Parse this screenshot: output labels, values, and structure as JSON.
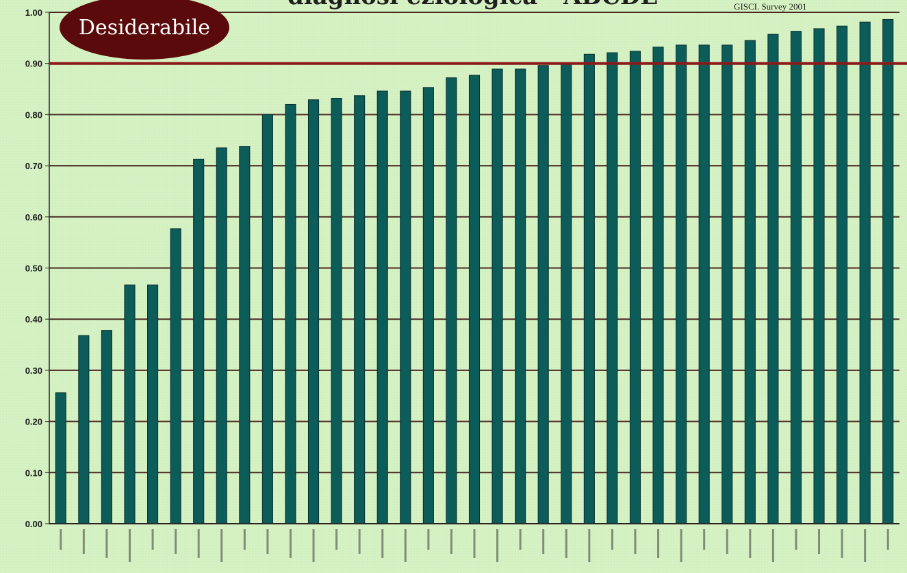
{
  "chart_data": {
    "type": "bar",
    "title_partial": "diagnosi eziologica - ABCDE",
    "credit": "GISCI. Survey 2001",
    "badge": "Desiderabile",
    "ylim": [
      0,
      1.0
    ],
    "yticks": [
      "0.00",
      "0.10",
      "0.20",
      "0.30",
      "0.40",
      "0.50",
      "0.60",
      "0.70",
      "0.80",
      "0.90",
      "1.00"
    ],
    "threshold": 0.9,
    "categories": [
      "",
      "",
      "",
      "",
      "",
      "",
      "",
      "",
      "",
      "",
      "",
      "",
      "",
      "",
      "",
      "",
      "",
      "",
      "",
      "",
      "",
      "",
      "",
      "",
      "",
      "",
      "",
      "",
      "",
      "",
      "",
      "",
      "",
      "",
      "",
      "",
      ""
    ],
    "values": [
      0.256,
      0.368,
      0.378,
      0.467,
      0.467,
      0.577,
      0.713,
      0.735,
      0.738,
      0.8,
      0.82,
      0.829,
      0.832,
      0.837,
      0.846,
      0.846,
      0.853,
      0.872,
      0.877,
      0.889,
      0.889,
      0.896,
      0.898,
      0.918,
      0.921,
      0.924,
      0.932,
      0.936,
      0.936,
      0.936,
      0.945,
      0.957,
      0.963,
      0.968,
      0.973,
      0.981,
      0.986
    ],
    "colors": {
      "bar": "#0c5c5a",
      "bar_edge": "#072f2e",
      "gridline": "#4a2a22",
      "threshold_line": "#8b1a1a",
      "badge_fill": "#5a0a0a",
      "background": "#d6f2c4"
    }
  }
}
